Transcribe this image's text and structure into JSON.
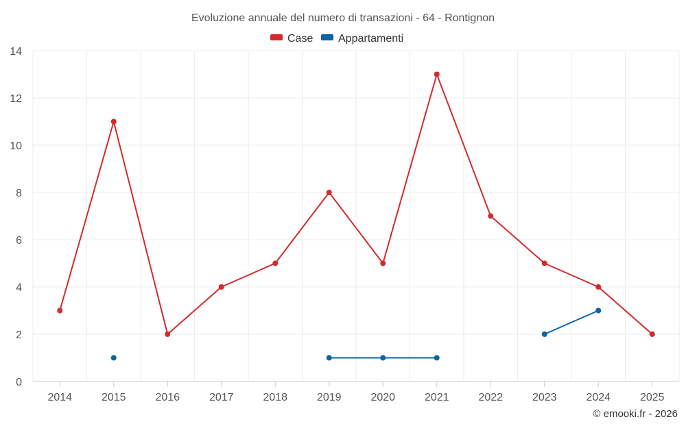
{
  "chart_data": {
    "type": "line",
    "title": "Evoluzione annuale del numero di transazioni - 64 - Rontignon",
    "xlabel": "",
    "ylabel": "",
    "categories": [
      "2014",
      "2015",
      "2016",
      "2017",
      "2018",
      "2019",
      "2020",
      "2021",
      "2022",
      "2023",
      "2024",
      "2025"
    ],
    "ylim": [
      0,
      14
    ],
    "yticks": [
      0,
      2,
      4,
      6,
      8,
      10,
      12,
      14
    ],
    "grid": true,
    "legend_position": "top-center",
    "series": [
      {
        "name": "Case",
        "color": "#d42a2a",
        "values": [
          3,
          11,
          2,
          4,
          5,
          8,
          5,
          13,
          7,
          5,
          4,
          2
        ]
      },
      {
        "name": "Appartamenti",
        "color": "#0a64a0",
        "values": [
          null,
          1,
          null,
          null,
          null,
          1,
          1,
          1,
          null,
          2,
          3,
          null
        ]
      }
    ],
    "credit": "© emooki.fr - 2026"
  }
}
